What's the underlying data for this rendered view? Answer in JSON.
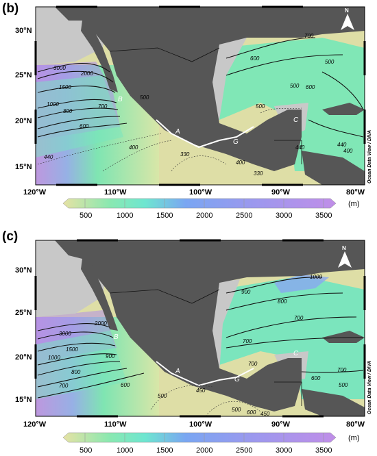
{
  "colors": {
    "land": "#565656",
    "shelf": "#c8c8c8",
    "low": "#e0e0a8",
    "mid": "#6ee6b4",
    "high": "#8aa8f0",
    "deep": "#b88be8"
  },
  "icons": [
    "north-arrow-icon"
  ],
  "shared": {
    "x_ticks": [
      "120°W",
      "110°W",
      "100°W",
      "90°W",
      "80°W"
    ],
    "y_ticks": [
      "30°N",
      "25°N",
      "20°N",
      "15°N"
    ],
    "watermark": "Ocean Data View / DIVA",
    "north": "N",
    "colorbar_ticks": [
      "500",
      "1000",
      "1500",
      "2000",
      "2500",
      "3000",
      "3500"
    ],
    "colorbar_unit": "(m)"
  },
  "panels": [
    {
      "label": "(b)",
      "contour_labels": [
        {
          "text": "3000"
        },
        {
          "text": "2000"
        },
        {
          "text": "1500"
        },
        {
          "text": "1000"
        },
        {
          "text": "800"
        },
        {
          "text": "700"
        },
        {
          "text": "600"
        },
        {
          "text": "500"
        },
        {
          "text": "440"
        },
        {
          "text": "400"
        },
        {
          "text": "330"
        },
        {
          "text": "400"
        },
        {
          "text": "330"
        },
        {
          "text": "700"
        },
        {
          "text": "600"
        },
        {
          "text": "500"
        },
        {
          "text": "500"
        },
        {
          "text": "600"
        },
        {
          "text": "500"
        },
        {
          "text": "440"
        },
        {
          "text": "400"
        },
        {
          "text": "440"
        }
      ],
      "site_labels": [
        "B",
        "A",
        "G",
        "C"
      ]
    },
    {
      "label": "(c)",
      "contour_labels": [
        {
          "text": "3000"
        },
        {
          "text": "2000"
        },
        {
          "text": "1500"
        },
        {
          "text": "1000"
        },
        {
          "text": "900"
        },
        {
          "text": "800"
        },
        {
          "text": "700"
        },
        {
          "text": "600"
        },
        {
          "text": "500"
        },
        {
          "text": "450"
        },
        {
          "text": "500"
        },
        {
          "text": "600"
        },
        {
          "text": "450"
        },
        {
          "text": "1000"
        },
        {
          "text": "900"
        },
        {
          "text": "800"
        },
        {
          "text": "700"
        },
        {
          "text": "700"
        },
        {
          "text": "700"
        },
        {
          "text": "600"
        },
        {
          "text": "500"
        },
        {
          "text": "700"
        }
      ],
      "site_labels": [
        "B",
        "A",
        "G",
        "C"
      ]
    }
  ]
}
